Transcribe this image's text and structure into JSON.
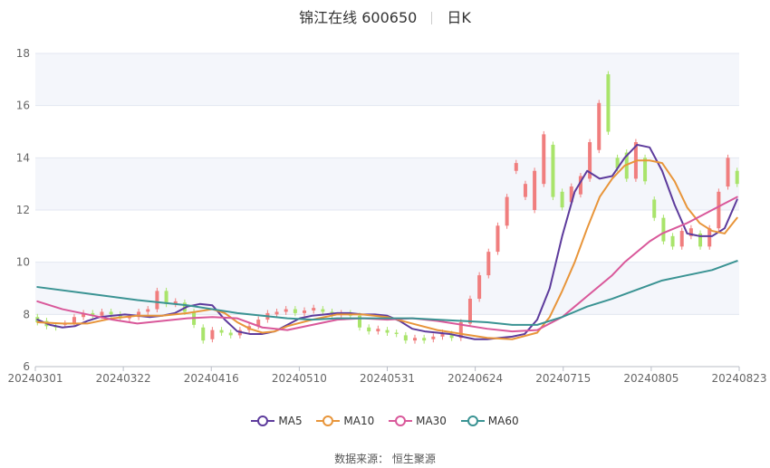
{
  "header": {
    "stock": "锦江在线 600650",
    "period": "日K"
  },
  "source": {
    "label": "数据来源：",
    "name": "恒生聚源"
  },
  "colors": {
    "up": "#F07E7E",
    "down": "#A9E46B",
    "ma5": "#5D3B9C",
    "ma10": "#E8953A",
    "ma30": "#D9589A",
    "ma60": "#3A9393",
    "band": "#F4F6FB",
    "grid": "#E3E7F0"
  },
  "chart_data": {
    "type": "candlestick",
    "title": "锦江在线 600650 日K",
    "ylim": [
      6,
      18
    ],
    "yticks": [
      6,
      8,
      10,
      12,
      14,
      16,
      18
    ],
    "xticks": [
      "20240301",
      "20240322",
      "20240416",
      "20240510",
      "20240531",
      "20240624",
      "20240715",
      "20240805",
      "20240823"
    ],
    "legend": [
      "MA5",
      "MA10",
      "MA30",
      "MA60"
    ],
    "legend_position": "bottom",
    "series": [
      {
        "name": "MA5",
        "points": [
          [
            0,
            7.8
          ],
          [
            3,
            7.6
          ],
          [
            6,
            7.5
          ],
          [
            9,
            7.55
          ],
          [
            12,
            7.75
          ],
          [
            15,
            7.9
          ],
          [
            18,
            7.95
          ],
          [
            21,
            8.0
          ],
          [
            24,
            7.95
          ],
          [
            27,
            7.9
          ],
          [
            30,
            7.95
          ],
          [
            33,
            8.05
          ],
          [
            36,
            8.3
          ],
          [
            39,
            8.4
          ],
          [
            42,
            8.35
          ],
          [
            45,
            7.8
          ],
          [
            48,
            7.35
          ],
          [
            51,
            7.25
          ],
          [
            54,
            7.25
          ],
          [
            57,
            7.35
          ],
          [
            60,
            7.6
          ],
          [
            63,
            7.85
          ],
          [
            66,
            7.95
          ],
          [
            69,
            8.0
          ],
          [
            72,
            8.05
          ],
          [
            75,
            8.05
          ],
          [
            78,
            8.0
          ],
          [
            81,
            8.0
          ],
          [
            84,
            7.95
          ],
          [
            87,
            7.75
          ],
          [
            90,
            7.45
          ],
          [
            93,
            7.35
          ],
          [
            96,
            7.3
          ],
          [
            99,
            7.25
          ],
          [
            102,
            7.15
          ],
          [
            105,
            7.05
          ],
          [
            108,
            7.05
          ],
          [
            111,
            7.1
          ],
          [
            114,
            7.15
          ],
          [
            117,
            7.25
          ],
          [
            120,
            7.8
          ],
          [
            123,
            9.0
          ],
          [
            126,
            11.0
          ],
          [
            129,
            12.7
          ],
          [
            132,
            13.5
          ],
          [
            135,
            13.2
          ],
          [
            138,
            13.3
          ],
          [
            141,
            14.0
          ],
          [
            144,
            14.5
          ],
          [
            147,
            14.4
          ],
          [
            150,
            13.5
          ],
          [
            153,
            12.2
          ],
          [
            156,
            11.1
          ],
          [
            159,
            11.0
          ],
          [
            162,
            11.0
          ],
          [
            165,
            11.3
          ],
          [
            168,
            12.4
          ]
        ]
      },
      {
        "name": "MA10",
        "points": [
          [
            0,
            7.7
          ],
          [
            6,
            7.65
          ],
          [
            12,
            7.65
          ],
          [
            18,
            7.85
          ],
          [
            24,
            7.95
          ],
          [
            30,
            7.95
          ],
          [
            36,
            8.05
          ],
          [
            42,
            8.2
          ],
          [
            45,
            8.05
          ],
          [
            48,
            7.7
          ],
          [
            51,
            7.45
          ],
          [
            54,
            7.3
          ],
          [
            57,
            7.35
          ],
          [
            60,
            7.55
          ],
          [
            66,
            7.8
          ],
          [
            72,
            8.0
          ],
          [
            78,
            8.0
          ],
          [
            84,
            7.9
          ],
          [
            90,
            7.65
          ],
          [
            96,
            7.4
          ],
          [
            102,
            7.25
          ],
          [
            108,
            7.1
          ],
          [
            114,
            7.05
          ],
          [
            120,
            7.3
          ],
          [
            123,
            7.9
          ],
          [
            126,
            8.9
          ],
          [
            129,
            10.0
          ],
          [
            132,
            11.3
          ],
          [
            135,
            12.5
          ],
          [
            138,
            13.2
          ],
          [
            141,
            13.7
          ],
          [
            144,
            13.9
          ],
          [
            147,
            13.9
          ],
          [
            150,
            13.8
          ],
          [
            153,
            13.1
          ],
          [
            156,
            12.1
          ],
          [
            159,
            11.5
          ],
          [
            162,
            11.2
          ],
          [
            165,
            11.1
          ],
          [
            168,
            11.7
          ]
        ]
      },
      {
        "name": "MA30",
        "points": [
          [
            0,
            8.5
          ],
          [
            6,
            8.2
          ],
          [
            12,
            8.0
          ],
          [
            18,
            7.8
          ],
          [
            24,
            7.65
          ],
          [
            30,
            7.75
          ],
          [
            36,
            7.85
          ],
          [
            42,
            7.9
          ],
          [
            48,
            7.85
          ],
          [
            54,
            7.5
          ],
          [
            60,
            7.4
          ],
          [
            66,
            7.6
          ],
          [
            72,
            7.8
          ],
          [
            78,
            7.85
          ],
          [
            84,
            7.8
          ],
          [
            90,
            7.85
          ],
          [
            96,
            7.75
          ],
          [
            102,
            7.6
          ],
          [
            108,
            7.45
          ],
          [
            114,
            7.35
          ],
          [
            120,
            7.4
          ],
          [
            126,
            7.9
          ],
          [
            129,
            8.3
          ],
          [
            132,
            8.7
          ],
          [
            135,
            9.1
          ],
          [
            138,
            9.5
          ],
          [
            141,
            10.0
          ],
          [
            144,
            10.4
          ],
          [
            147,
            10.8
          ],
          [
            150,
            11.1
          ],
          [
            153,
            11.3
          ],
          [
            156,
            11.5
          ],
          [
            159,
            11.75
          ],
          [
            162,
            12.0
          ],
          [
            165,
            12.25
          ],
          [
            168,
            12.5
          ]
        ]
      },
      {
        "name": "MA60",
        "points": [
          [
            0,
            9.05
          ],
          [
            12,
            8.8
          ],
          [
            24,
            8.55
          ],
          [
            36,
            8.35
          ],
          [
            42,
            8.2
          ],
          [
            48,
            8.05
          ],
          [
            54,
            7.95
          ],
          [
            60,
            7.85
          ],
          [
            66,
            7.8
          ],
          [
            72,
            7.85
          ],
          [
            78,
            7.85
          ],
          [
            84,
            7.85
          ],
          [
            90,
            7.85
          ],
          [
            96,
            7.8
          ],
          [
            102,
            7.75
          ],
          [
            108,
            7.7
          ],
          [
            114,
            7.6
          ],
          [
            120,
            7.6
          ],
          [
            126,
            7.9
          ],
          [
            132,
            8.3
          ],
          [
            138,
            8.6
          ],
          [
            144,
            8.95
          ],
          [
            150,
            9.3
          ],
          [
            156,
            9.5
          ],
          [
            162,
            9.7
          ],
          [
            168,
            10.05
          ]
        ]
      }
    ],
    "candles": [
      {
        "o": 7.9,
        "c": 7.7
      },
      {
        "o": 7.75,
        "c": 7.55
      },
      {
        "o": 7.55,
        "c": 7.5
      },
      {
        "o": 7.6,
        "c": 7.65
      },
      {
        "o": 7.65,
        "c": 7.9
      },
      {
        "o": 7.9,
        "c": 8.05
      },
      {
        "o": 8.05,
        "c": 7.95
      },
      {
        "o": 7.95,
        "c": 8.1
      },
      {
        "o": 8.1,
        "c": 8.0
      },
      {
        "o": 8.0,
        "c": 7.85
      },
      {
        "o": 7.85,
        "c": 7.9
      },
      {
        "o": 7.9,
        "c": 8.1
      },
      {
        "o": 8.1,
        "c": 8.2
      },
      {
        "o": 8.2,
        "c": 8.9
      },
      {
        "o": 8.9,
        "c": 8.4
      },
      {
        "o": 8.4,
        "c": 8.5
      },
      {
        "o": 8.45,
        "c": 8.1
      },
      {
        "o": 8.1,
        "c": 7.6
      },
      {
        "o": 7.5,
        "c": 7.0
      },
      {
        "o": 7.05,
        "c": 7.4
      },
      {
        "o": 7.4,
        "c": 7.3
      },
      {
        "o": 7.3,
        "c": 7.2
      },
      {
        "o": 7.2,
        "c": 7.4
      },
      {
        "o": 7.4,
        "c": 7.55
      },
      {
        "o": 7.55,
        "c": 7.8
      },
      {
        "o": 7.8,
        "c": 8.05
      },
      {
        "o": 8.0,
        "c": 8.1
      },
      {
        "o": 8.1,
        "c": 8.2
      },
      {
        "o": 8.2,
        "c": 8.05
      },
      {
        "o": 8.05,
        "c": 8.15
      },
      {
        "o": 8.15,
        "c": 8.25
      },
      {
        "o": 8.2,
        "c": 8.1
      },
      {
        "o": 8.1,
        "c": 8.0
      },
      {
        "o": 8.0,
        "c": 8.05
      },
      {
        "o": 8.05,
        "c": 7.95
      },
      {
        "o": 7.95,
        "c": 7.5
      },
      {
        "o": 7.5,
        "c": 7.35
      },
      {
        "o": 7.35,
        "c": 7.45
      },
      {
        "o": 7.4,
        "c": 7.3
      },
      {
        "o": 7.3,
        "c": 7.25
      },
      {
        "o": 7.2,
        "c": 7.0
      },
      {
        "o": 7.0,
        "c": 7.1
      },
      {
        "o": 7.1,
        "c": 7.0
      },
      {
        "o": 7.05,
        "c": 7.15
      },
      {
        "o": 7.15,
        "c": 7.3
      },
      {
        "o": 7.25,
        "c": 7.1
      },
      {
        "o": 7.1,
        "c": 7.7
      },
      {
        "o": 7.65,
        "c": 8.6
      },
      {
        "o": 8.6,
        "c": 9.5
      },
      {
        "o": 9.5,
        "c": 10.4
      },
      {
        "o": 10.4,
        "c": 11.4
      },
      {
        "o": 11.4,
        "c": 12.5
      },
      {
        "o": 13.5,
        "c": 13.8
      },
      {
        "o": 12.5,
        "c": 13.0
      },
      {
        "o": 12.0,
        "c": 13.5
      },
      {
        "o": 13.0,
        "c": 14.9
      },
      {
        "o": 14.5,
        "c": 12.5
      },
      {
        "o": 12.7,
        "c": 12.1
      },
      {
        "o": 12.3,
        "c": 12.9
      },
      {
        "o": 12.6,
        "c": 13.3
      },
      {
        "o": 13.2,
        "c": 14.6
      },
      {
        "o": 14.3,
        "c": 16.1
      },
      {
        "o": 17.2,
        "c": 15.0
      },
      {
        "o": 14.0,
        "c": 13.6
      },
      {
        "o": 14.2,
        "c": 13.2
      },
      {
        "o": 13.2,
        "c": 14.6
      },
      {
        "o": 14.0,
        "c": 13.1
      },
      {
        "o": 12.4,
        "c": 11.7
      },
      {
        "o": 11.7,
        "c": 10.8
      },
      {
        "o": 11.0,
        "c": 10.6
      },
      {
        "o": 10.6,
        "c": 11.2
      },
      {
        "o": 11.0,
        "c": 11.3
      },
      {
        "o": 11.1,
        "c": 10.6
      },
      {
        "o": 10.6,
        "c": 11.3
      },
      {
        "o": 11.3,
        "c": 12.7
      },
      {
        "o": 12.9,
        "c": 14.0
      },
      {
        "o": 13.5,
        "c": 13.0
      }
    ]
  }
}
